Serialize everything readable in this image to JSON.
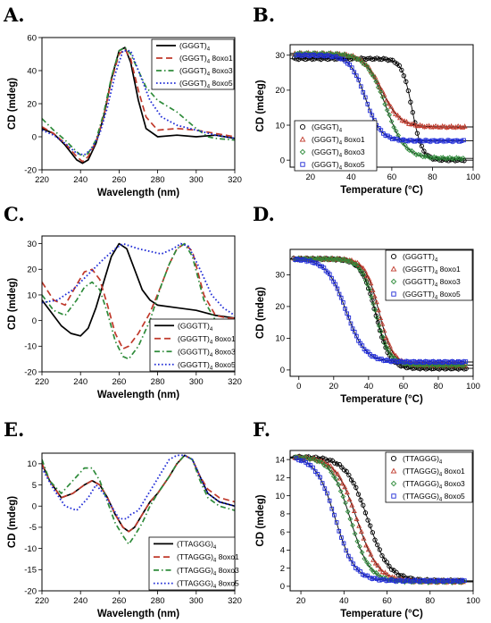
{
  "colors": {
    "black": "#000000",
    "red": "#c0392b",
    "green": "#2e8b3a",
    "blue": "#1f2bd6",
    "pink": "#f5b8c8"
  },
  "chart_data": [
    {
      "letter": "A.",
      "type": "line",
      "xlabel": "Wavelength (nm)",
      "ylabel": "CD (mdeg)",
      "xlim": [
        220,
        320
      ],
      "ylim": [
        -20,
        60
      ],
      "xticks": [
        "220",
        "240",
        "260",
        "280",
        "300",
        "320"
      ],
      "yticks": [
        "-20",
        "0",
        "20",
        "40",
        "60"
      ],
      "legend": {
        "position": "top-right"
      },
      "series": [
        {
          "name": "(GGGT)",
          "sub": "4",
          "suffix": "",
          "style": "solid",
          "color": "#000000",
          "x": [
            220,
            226,
            232,
            238,
            241,
            244,
            248,
            252,
            256,
            260,
            263,
            266,
            270,
            274,
            280,
            290,
            300,
            310,
            320
          ],
          "y": [
            5,
            2,
            -5,
            -14,
            -16,
            -14,
            -4,
            12,
            35,
            52,
            54,
            45,
            22,
            5,
            0,
            1,
            0,
            1,
            -1
          ]
        },
        {
          "name": "(GGGT)",
          "sub": "4",
          "suffix": " 8oxo1",
          "style": "longdash",
          "color": "#c0392b",
          "x": [
            220,
            226,
            232,
            238,
            241,
            244,
            248,
            252,
            256,
            260,
            263,
            266,
            270,
            274,
            280,
            290,
            300,
            310,
            320
          ],
          "y": [
            6,
            2,
            -4,
            -12,
            -15,
            -12,
            -3,
            12,
            34,
            50,
            53,
            47,
            28,
            12,
            4,
            5,
            4,
            2,
            0
          ]
        },
        {
          "name": "(GGGT)",
          "sub": "4",
          "suffix": " 8oxo3",
          "style": "dashdot",
          "color": "#2e8b3a",
          "x": [
            220,
            226,
            232,
            238,
            241,
            244,
            248,
            252,
            256,
            260,
            263,
            266,
            270,
            274,
            280,
            290,
            300,
            306,
            310,
            320
          ],
          "y": [
            11,
            4,
            -2,
            -9,
            -12,
            -10,
            -2,
            14,
            36,
            52,
            54,
            50,
            40,
            30,
            22,
            15,
            5,
            0,
            -1,
            -2
          ]
        },
        {
          "name": "(GGGT)",
          "sub": "4",
          "suffix": " 8oxo5",
          "style": "dot",
          "color": "#1f2bd6",
          "x": [
            220,
            226,
            232,
            238,
            242,
            246,
            250,
            254,
            258,
            262,
            266,
            270,
            276,
            282,
            290,
            300,
            310,
            320
          ],
          "y": [
            4,
            1,
            -4,
            -10,
            -11,
            -7,
            2,
            18,
            38,
            52,
            52,
            40,
            22,
            12,
            7,
            4,
            1,
            -1
          ]
        }
      ]
    },
    {
      "letter": "B.",
      "type": "scatter",
      "xlabel": "Temperature (°C)",
      "ylabel": "CD (mdeg)",
      "xlim": [
        10,
        100
      ],
      "ylim": [
        -2,
        33
      ],
      "xticks": [
        "20",
        "40",
        "60",
        "80",
        "100"
      ],
      "yticks": [
        "0",
        "10",
        "20",
        "30"
      ],
      "legend": {
        "position": "bottom-left"
      },
      "series": [
        {
          "name": "(GGGT)",
          "sub": "4",
          "suffix": "",
          "marker": "circle",
          "color": "#000000",
          "top": 29,
          "bottom": 0,
          "tm": 70,
          "w": 2.5
        },
        {
          "name": "(GGGT)",
          "sub": "4",
          "suffix": " 8oxo1",
          "marker": "triangle",
          "color": "#c0392b",
          "top": 30.5,
          "bottom": 9.5,
          "tm": 55,
          "w": 4.5
        },
        {
          "name": "(GGGT)",
          "sub": "4",
          "suffix": " 8oxo3",
          "marker": "diamond",
          "color": "#2e8b3a",
          "top": 30.5,
          "bottom": 0.5,
          "tm": 57,
          "w": 4.8
        },
        {
          "name": "(GGGT)",
          "sub": "4",
          "suffix": " 8oxo5",
          "marker": "square",
          "color": "#1f2bd6",
          "top": 30,
          "bottom": 5.5,
          "tm": 47,
          "w": 3.8
        }
      ]
    },
    {
      "letter": "C.",
      "type": "line",
      "xlabel": "Wavelength (nm)",
      "ylabel": "CD (mdeg)",
      "xlim": [
        220,
        320
      ],
      "ylim": [
        -20,
        33
      ],
      "xticks": [
        "220",
        "240",
        "260",
        "280",
        "300",
        "320"
      ],
      "yticks": [
        "-20",
        "-10",
        "0",
        "10",
        "20",
        "30"
      ],
      "legend": {
        "position": "bottom-right"
      },
      "series": [
        {
          "name": "(GGGTT)",
          "sub": "4",
          "suffix": "",
          "style": "solid",
          "color": "#000000",
          "x": [
            220,
            225,
            230,
            235,
            240,
            244,
            248,
            252,
            256,
            260,
            264,
            268,
            272,
            276,
            280,
            290,
            300,
            310,
            320
          ],
          "y": [
            8,
            3,
            -2,
            -5,
            -6,
            -3,
            5,
            15,
            25,
            30,
            28,
            20,
            12,
            8,
            6,
            5,
            4,
            2,
            1
          ]
        },
        {
          "name": "(GGGTT)",
          "sub": "4",
          "suffix": " 8oxo1",
          "style": "longdash",
          "color": "#c0392b",
          "x": [
            220,
            226,
            232,
            238,
            242,
            246,
            250,
            254,
            258,
            262,
            265,
            270,
            276,
            282,
            286,
            290,
            294,
            298,
            304,
            310,
            316,
            320
          ],
          "y": [
            15,
            8,
            6,
            14,
            19,
            20,
            16,
            6,
            -5,
            -11,
            -10,
            -5,
            3,
            14,
            22,
            28,
            30,
            27,
            10,
            2,
            1,
            1
          ]
        },
        {
          "name": "(GGGTT)",
          "sub": "4",
          "suffix": " 8oxo3",
          "style": "dashdot",
          "color": "#2e8b3a",
          "x": [
            220,
            226,
            232,
            238,
            242,
            246,
            250,
            254,
            258,
            262,
            265,
            270,
            276,
            282,
            286,
            290,
            294,
            298,
            304,
            310,
            316,
            320
          ],
          "y": [
            10,
            4,
            2,
            8,
            13,
            15,
            12,
            3,
            -8,
            -14,
            -15,
            -10,
            0,
            14,
            22,
            28,
            30,
            25,
            8,
            0,
            -2,
            -3
          ]
        },
        {
          "name": "(GGGTT)",
          "sub": "4",
          "suffix": " 8oxo5",
          "style": "dot",
          "color": "#1f2bd6",
          "x": [
            220,
            228,
            236,
            244,
            252,
            258,
            262,
            266,
            270,
            276,
            282,
            288,
            292,
            296,
            302,
            308,
            314,
            320
          ],
          "y": [
            7,
            8,
            12,
            18,
            24,
            28,
            30,
            29,
            28,
            27,
            26,
            28,
            30,
            29,
            20,
            10,
            5,
            2
          ]
        }
      ]
    },
    {
      "letter": "D.",
      "type": "scatter",
      "xlabel": "Temperature (°C)",
      "ylabel": "CD (mdeg)",
      "xlim": [
        -5,
        100
      ],
      "ylim": [
        -2,
        38
      ],
      "xticks": [
        "0",
        "20",
        "40",
        "60",
        "80",
        "100"
      ],
      "yticks": [
        "0",
        "10",
        "20",
        "30"
      ],
      "legend": {
        "position": "top-right"
      },
      "series": [
        {
          "name": "(GGGTT)",
          "sub": "4",
          "suffix": "",
          "marker": "circle",
          "color": "#000000",
          "top": 35,
          "bottom": 0.5,
          "tm": 44,
          "w": 4
        },
        {
          "name": "(GGGTT)",
          "sub": "4",
          "suffix": " 8oxo1",
          "marker": "triangle",
          "color": "#c0392b",
          "top": 35,
          "bottom": 1.5,
          "tm": 46,
          "w": 4
        },
        {
          "name": "(GGGTT)",
          "sub": "4",
          "suffix": " 8oxo3",
          "marker": "diamond",
          "color": "#2e8b3a",
          "top": 35,
          "bottom": 1.5,
          "tm": 44,
          "w": 4
        },
        {
          "name": "(GGGTT)",
          "sub": "4",
          "suffix": " 8oxo5",
          "marker": "square",
          "color": "#1f2bd6",
          "top": 35,
          "bottom": 2.5,
          "tm": 27,
          "w": 5.5
        }
      ]
    },
    {
      "letter": "E.",
      "type": "line",
      "xlabel": "Wavelength (nm)",
      "ylabel": "CD (mdeg)",
      "xlim": [
        220,
        320
      ],
      "ylim": [
        -20,
        12.5
      ],
      "xticks": [
        "220",
        "240",
        "260",
        "280",
        "300",
        "320"
      ],
      "yticks": [
        "-20",
        "-15",
        "-10",
        "-5",
        "0",
        "5",
        "10"
      ],
      "legend": {
        "position": "bottom-right"
      },
      "series": [
        {
          "name": "(TTAGGG)",
          "sub": "4",
          "suffix": "",
          "style": "solid",
          "color": "#000000",
          "x": [
            220,
            224,
            230,
            236,
            242,
            246,
            250,
            254,
            258,
            262,
            265,
            268,
            272,
            276,
            280,
            286,
            290,
            294,
            298,
            302,
            306,
            312,
            320
          ],
          "y": [
            10,
            6,
            2,
            3,
            5,
            6,
            5,
            2,
            -2,
            -5,
            -6,
            -5,
            -2,
            1,
            3,
            7,
            10,
            12,
            11,
            7,
            3,
            1,
            0
          ]
        },
        {
          "name": "(TTAGGG)",
          "sub": "4",
          "suffix": " 8oxo1",
          "style": "longdash",
          "color": "#c0392b",
          "x": [
            220,
            224,
            230,
            236,
            242,
            246,
            250,
            254,
            258,
            262,
            265,
            268,
            272,
            276,
            280,
            286,
            290,
            294,
            298,
            302,
            306,
            312,
            320
          ],
          "y": [
            10,
            6,
            2,
            3,
            5,
            6,
            5,
            2,
            -2,
            -5,
            -6,
            -5,
            -2,
            1,
            3,
            7,
            10,
            12,
            11,
            7,
            4,
            2,
            1
          ]
        },
        {
          "name": "(TTAGGG)",
          "sub": "4",
          "suffix": " 8oxo3",
          "style": "dashdot",
          "color": "#2e8b3a",
          "x": [
            220,
            224,
            230,
            236,
            242,
            246,
            250,
            254,
            258,
            262,
            265,
            268,
            272,
            276,
            280,
            286,
            290,
            294,
            298,
            302,
            306,
            312,
            320
          ],
          "y": [
            11,
            6,
            3,
            6,
            9,
            9,
            6,
            1,
            -4,
            -7,
            -9,
            -7,
            -4,
            0,
            3,
            7,
            10,
            12,
            11,
            6,
            2,
            0,
            -1
          ]
        },
        {
          "name": "(TTAGGG)",
          "sub": "4",
          "suffix": " 8oxo5",
          "style": "dot",
          "color": "#1f2bd6",
          "x": [
            220,
            226,
            232,
            238,
            244,
            248,
            252,
            256,
            260,
            264,
            266,
            270,
            274,
            278,
            282,
            286,
            290,
            294,
            298,
            302,
            306,
            312,
            320
          ],
          "y": [
            9,
            4,
            0,
            -1,
            2,
            5,
            3,
            0,
            -3,
            -3,
            -2,
            -1,
            2,
            5,
            8,
            11,
            12,
            12,
            11,
            7,
            3,
            1,
            0
          ]
        }
      ]
    },
    {
      "letter": "F.",
      "type": "scatter",
      "xlabel": "Temperature (°C)",
      "ylabel": "CD (mdeg)",
      "xlim": [
        15,
        100
      ],
      "ylim": [
        -0.5,
        15
      ],
      "xticks": [
        "20",
        "40",
        "60",
        "80",
        "100"
      ],
      "yticks": [
        "0",
        "2",
        "4",
        "6",
        "8",
        "10",
        "12",
        "14"
      ],
      "legend": {
        "position": "top-right"
      },
      "series": [
        {
          "name": "(TTAGGG)",
          "sub": "4",
          "suffix": "",
          "marker": "circle",
          "color": "#000000",
          "top": 14.3,
          "bottom": 0.6,
          "tm": 51,
          "w": 5
        },
        {
          "name": "(TTAGGG)",
          "sub": "4",
          "suffix": " 8oxo1",
          "marker": "triangle",
          "color": "#c0392b",
          "top": 14.3,
          "bottom": 0.5,
          "tm": 46,
          "w": 5
        },
        {
          "name": "(TTAGGG)",
          "sub": "4",
          "suffix": " 8oxo3",
          "marker": "diamond",
          "color": "#2e8b3a",
          "top": 14.3,
          "bottom": 0.5,
          "tm": 43,
          "w": 4.5
        },
        {
          "name": "(TTAGGG)",
          "sub": "4",
          "suffix": " 8oxo5",
          "marker": "square",
          "color": "#1f2bd6",
          "top": 14.3,
          "bottom": 0.6,
          "tm": 36,
          "w": 4.5
        }
      ]
    }
  ]
}
